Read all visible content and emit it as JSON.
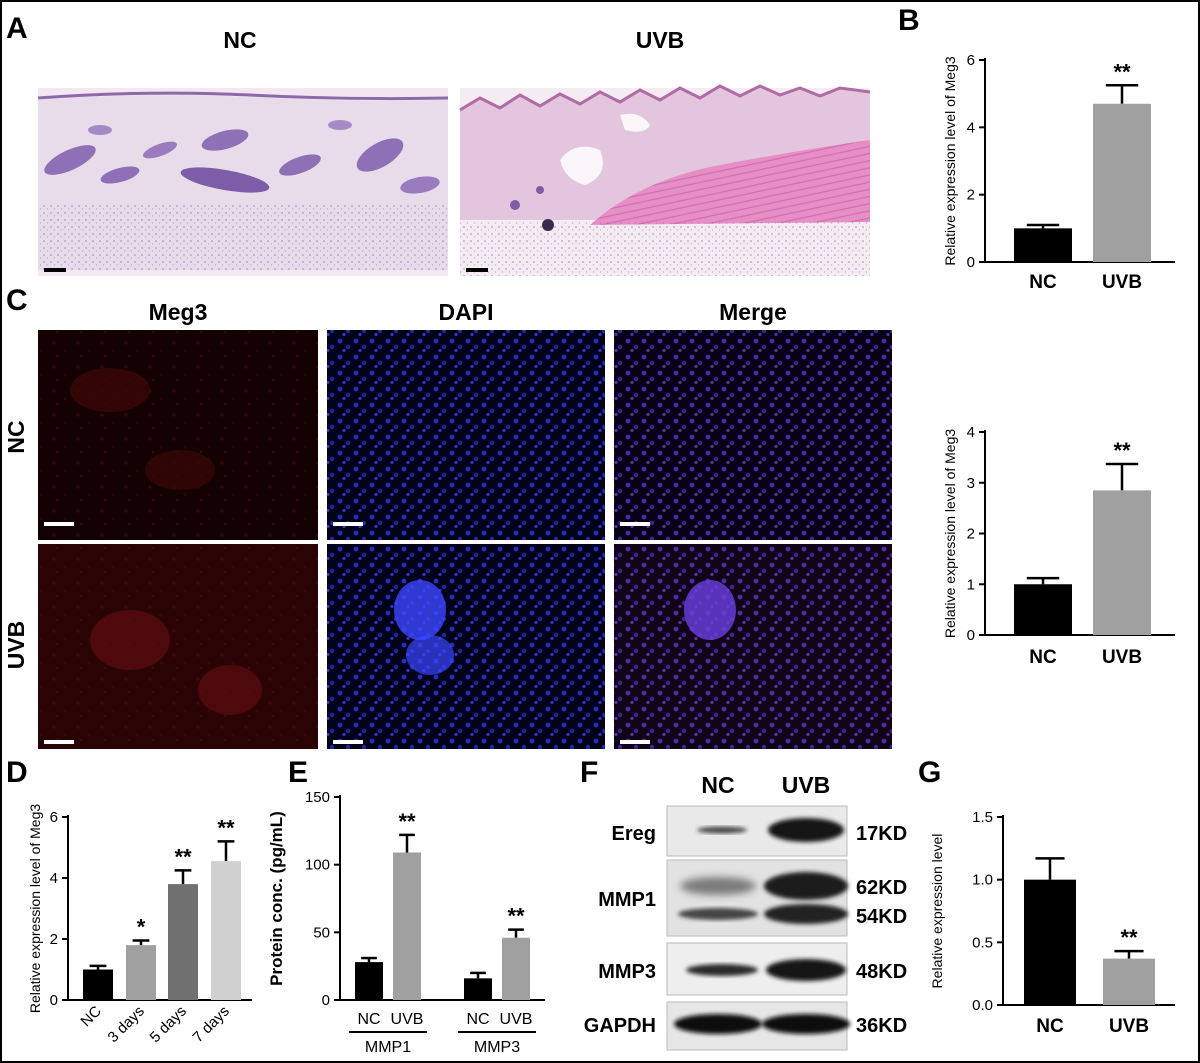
{
  "panels": {
    "A": {
      "label": "A",
      "groups": [
        "NC",
        "UVB"
      ],
      "stain_colors": {
        "background": "#f3e8f1",
        "tissue": "#c9b3d6",
        "follicle": "#8f6fb5",
        "muscle": "#e68fc6"
      }
    },
    "C": {
      "label": "C",
      "columns": [
        "Meg3",
        "DAPI",
        "Merge"
      ],
      "rows": [
        "NC",
        "UVB"
      ],
      "channel_colors": {
        "Meg3": "#b5191c",
        "DAPI": "#2f3cff",
        "Merge": "#5f37d8"
      }
    },
    "F": {
      "label": "F",
      "lanes": [
        "NC",
        "UVB"
      ],
      "proteins": [
        "Ereg",
        "MMP1",
        "MMP3",
        "GAPDH"
      ],
      "sizes": [
        "17KD",
        "62KD",
        "54KD",
        "48KD",
        "36KD"
      ]
    },
    "B": {
      "label": "B"
    },
    "D": {
      "label": "D"
    },
    "E": {
      "label": "E"
    },
    "G": {
      "label": "G"
    }
  },
  "chart_data": [
    {
      "id": "B",
      "type": "bar",
      "categories": [
        "NC",
        "UVB"
      ],
      "values": [
        1.0,
        4.7
      ],
      "errors": [
        0.1,
        0.55
      ],
      "significance": [
        "",
        "**"
      ],
      "ylabel": "Relative expression level of Meg3",
      "ylim": [
        0,
        6
      ],
      "yticks": [
        "0",
        "2",
        "4",
        "6"
      ],
      "colors": [
        "#000000",
        "#a0a0a0"
      ]
    },
    {
      "id": "C-quant",
      "type": "bar",
      "categories": [
        "NC",
        "UVB"
      ],
      "values": [
        1.0,
        2.85
      ],
      "errors": [
        0.12,
        0.52
      ],
      "significance": [
        "",
        "**"
      ],
      "ylabel": "Relative expression level of Meg3",
      "ylim": [
        0,
        4
      ],
      "yticks": [
        "0",
        "1",
        "2",
        "3",
        "4"
      ],
      "colors": [
        "#000000",
        "#a0a0a0"
      ]
    },
    {
      "id": "D",
      "type": "bar",
      "categories": [
        "NC",
        "3 days",
        "5 days",
        "7 days"
      ],
      "values": [
        1.0,
        1.8,
        3.8,
        4.55
      ],
      "errors": [
        0.12,
        0.15,
        0.45,
        0.65
      ],
      "significance": [
        "",
        "*",
        "**",
        "**"
      ],
      "ylabel": "Relative expression level of Meg3",
      "ylim": [
        0,
        6
      ],
      "yticks": [
        "0",
        "2",
        "4",
        "6"
      ],
      "colors": [
        "#000000",
        "#a0a0a0",
        "#707070",
        "#d0d0d0"
      ]
    },
    {
      "id": "E",
      "type": "bar",
      "categories": [
        "NC",
        "UVB",
        "NC",
        "UVB"
      ],
      "groups": [
        "MMP1",
        "MMP3"
      ],
      "values": [
        28,
        109,
        16,
        46
      ],
      "errors": [
        3,
        13,
        4,
        6
      ],
      "significance": [
        "",
        "**",
        "",
        "**"
      ],
      "ylabel": "Protein conc. (pg/mL)",
      "ylim": [
        0,
        150
      ],
      "yticks": [
        "0",
        "50",
        "100",
        "150"
      ],
      "colors": [
        "#000000",
        "#a0a0a0",
        "#000000",
        "#a0a0a0"
      ]
    },
    {
      "id": "G",
      "type": "bar",
      "categories": [
        "NC",
        "UVB"
      ],
      "values": [
        1.0,
        0.37
      ],
      "errors": [
        0.17,
        0.06
      ],
      "significance": [
        "",
        "**"
      ],
      "ylabel": "Relative expression level",
      "ylim": [
        0,
        1.5
      ],
      "yticks": [
        "0.0",
        "0.5",
        "1.0",
        "1.5"
      ],
      "colors": [
        "#000000",
        "#a0a0a0"
      ]
    }
  ]
}
